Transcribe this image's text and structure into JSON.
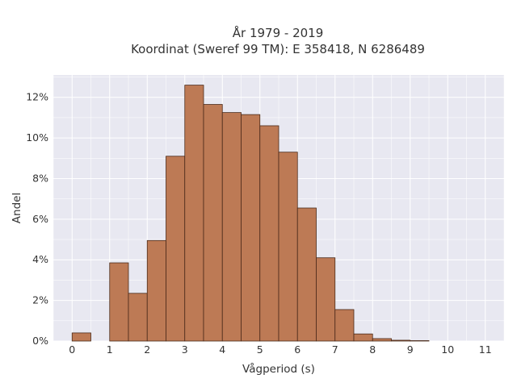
{
  "chart_data": {
    "type": "bar",
    "title": [
      "År 1979 - 2019",
      "Koordinat (Sweref 99 TM): E 358418, N 6286489"
    ],
    "xlabel": "Vågperiod (s)",
    "ylabel": "Andel",
    "xlim": [
      -0.5,
      11.5
    ],
    "ylim": [
      0,
      13.1
    ],
    "bin_width": 0.5,
    "bins": [
      {
        "x0": 0.0,
        "value": 0.4
      },
      {
        "x0": 0.5,
        "value": 0.0
      },
      {
        "x0": 1.0,
        "value": 3.85
      },
      {
        "x0": 1.5,
        "value": 2.35
      },
      {
        "x0": 2.0,
        "value": 4.95
      },
      {
        "x0": 2.5,
        "value": 9.1
      },
      {
        "x0": 3.0,
        "value": 12.6
      },
      {
        "x0": 3.5,
        "value": 11.65
      },
      {
        "x0": 4.0,
        "value": 11.25
      },
      {
        "x0": 4.5,
        "value": 11.15
      },
      {
        "x0": 5.0,
        "value": 10.6
      },
      {
        "x0": 5.5,
        "value": 9.3
      },
      {
        "x0": 6.0,
        "value": 6.55
      },
      {
        "x0": 6.5,
        "value": 4.1
      },
      {
        "x0": 7.0,
        "value": 1.55
      },
      {
        "x0": 7.5,
        "value": 0.35
      },
      {
        "x0": 8.0,
        "value": 0.12
      },
      {
        "x0": 8.5,
        "value": 0.04
      },
      {
        "x0": 9.0,
        "value": 0.02
      }
    ],
    "xticks": [
      "0",
      "1",
      "2",
      "3",
      "4",
      "5",
      "6",
      "7",
      "8",
      "9",
      "10",
      "11"
    ],
    "xtick_values": [
      0,
      1,
      2,
      3,
      4,
      5,
      6,
      7,
      8,
      9,
      10,
      11
    ],
    "yticks": [
      "0%",
      "2%",
      "4%",
      "6%",
      "8%",
      "10%",
      "12%"
    ],
    "ytick_values": [
      0,
      2,
      4,
      6,
      8,
      10,
      12
    ],
    "grid": true,
    "colors": {
      "bar_fill": "#bd7a55",
      "bar_edge": "#4a2a1a",
      "plot_bg": "#e8e8f1",
      "grid": "#ffffff"
    }
  }
}
